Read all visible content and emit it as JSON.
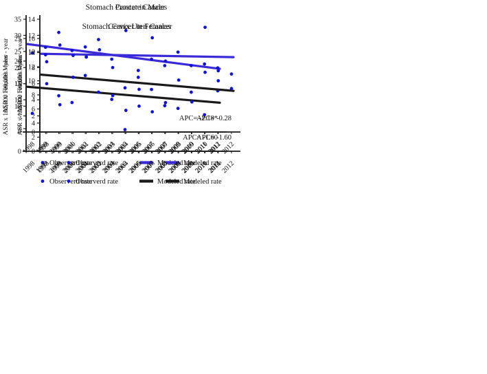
{
  "page": {
    "background": "#ffffff",
    "text_color": "#111111",
    "axis_color": "#1a1a1a"
  },
  "chart_data": [
    {
      "type": "scatter",
      "title": "Stomach Cancer in Males",
      "xlabel": "",
      "ylabel": "ASR x 100,000  Males - year",
      "ylim": [
        0,
        35
      ],
      "ytick_step": 5,
      "grid": false,
      "legend_position": "bottom",
      "categories": [
        "1998",
        "1999",
        "2000",
        "2001",
        "2002",
        "2003",
        "2004",
        "2005",
        "2006",
        "2007",
        "2008",
        "2009",
        "2010",
        "2011",
        "2012"
      ],
      "series": [
        {
          "name": "Observerd rate",
          "kind": "points",
          "color": "#1212dd",
          "values": [
            24.5,
            26.3,
            30.9,
            25.3,
            26.4,
            28.7,
            22.6,
            13.7,
            19.1,
            22.6,
            20.6,
            24.8,
            20.6,
            21.1,
            19.9
          ]
        },
        {
          "name": "Modeled rate",
          "kind": "trend-line",
          "color": "#3a2ad8",
          "endpoint_values": [
            27.1,
            19.7
          ]
        }
      ],
      "annotation": "APC= -2.18*"
    },
    {
      "type": "scatter",
      "title": "Prostate Cancer",
      "xlabel": "",
      "ylabel": "ASR x 100,000  Males - year",
      "ylim": [
        0,
        14
      ],
      "ytick_step": 2,
      "grid": false,
      "legend_position": "bottom",
      "categories": [
        "1998",
        "1999",
        "2000",
        "2001",
        "2002",
        "2003",
        "2004",
        "2005",
        "2006",
        "2007",
        "2008",
        "2009",
        "2010",
        "2011",
        "2012"
      ],
      "series": [
        {
          "name": "Observerd rate",
          "kind": "points",
          "color": "#1212dd",
          "values": [
            6.0,
            10.8,
            9.5,
            9.3,
            null,
            8.0,
            12.6,
            5.3,
            11.7,
            8.8,
            null,
            null,
            13.0,
            7.6,
            7.2
          ]
        },
        {
          "name": "Modeled rate",
          "kind": "trend-line",
          "color": "#3a2ad8",
          "endpoint_values": [
            9.7,
            9.3
          ]
        }
      ],
      "annotation": "APC= -0.28"
    },
    {
      "type": "scatter",
      "title": "Stomach Cancer in Females",
      "xlabel": "",
      "ylabel": "ASR x 100,000  Females - year",
      "ylim": [
        0,
        25
      ],
      "ytick_step": 5,
      "grid": false,
      "legend_position": "bottom",
      "categories": [
        "1998",
        "1999",
        "2000",
        "2001",
        "2002",
        "2003",
        "2004",
        "2005",
        "2006",
        "2007",
        "2008",
        "2009",
        "2010",
        "2011",
        "2012"
      ],
      "series": [
        {
          "name": "Observerd rate",
          "kind": "points",
          "color": "#1212dd",
          "values": [
            8.4,
            21.4,
            12.3,
            10.8,
            16.8,
            13.1,
            11.5,
            4.8,
            16.4,
            13.7,
            10.1,
            9.5,
            13.1,
            8.1,
            13.4
          ]
        },
        {
          "name": "Modeled rate",
          "kind": "trend-line",
          "color": "#1a1a1a",
          "endpoint_values": [
            14.2,
            10.8
          ]
        }
      ],
      "annotation": "APC= -1.60"
    },
    {
      "type": "scatter",
      "title": "Cervix Uteri Cancer",
      "xlabel": "",
      "ylabel": "ASR x 100,000  Females - year",
      "ylim": [
        0,
        16
      ],
      "ytick_step": 2,
      "grid": false,
      "legend_position": "bottom",
      "categories": [
        "1998",
        "1999",
        "2000",
        "2001",
        "2002",
        "2003",
        "2004",
        "2005",
        "2006",
        "2007",
        "2008",
        "2009",
        "2010",
        "2011",
        "2012"
      ],
      "series": [
        {
          "name": "Observerd rate",
          "kind": "points",
          "color": "#1212dd",
          "values": [
            12.7,
            6.6,
            10.5,
            13.4,
            14.4,
            7.9,
            5.8,
            6.4,
            5.6,
            6.9,
            10.1,
            7.0,
            11.2,
            10.0,
            8.9
          ]
        },
        {
          "name": "Modeled rate",
          "kind": "trend-line",
          "color": "#1a1a1a",
          "endpoint_values": [
            10.8,
            8.6
          ]
        }
      ],
      "annotation": "APC= -1.60"
    }
  ]
}
